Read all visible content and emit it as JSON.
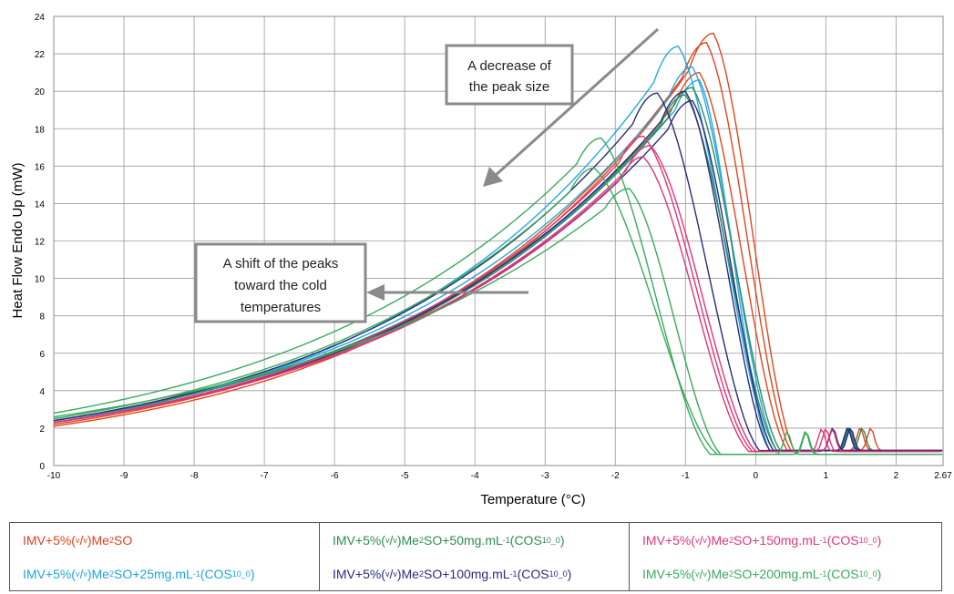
{
  "chart_data": {
    "type": "line",
    "xlabel": "Temperature (°C)",
    "ylabel": "Heat Flow Endo Up (mW)",
    "xlim": [
      -10,
      2.67
    ],
    "ylim": [
      0,
      24
    ],
    "x_ticks": [
      "-10",
      "-9",
      "-8",
      "-7",
      "-6",
      "-5",
      "-4",
      "-3",
      "-2",
      "-1",
      "0",
      "1",
      "2",
      "2.67"
    ],
    "y_ticks": [
      "0",
      "2",
      "4",
      "6",
      "8",
      "10",
      "12",
      "14",
      "16",
      "18",
      "20",
      "22",
      "24"
    ],
    "grid": true,
    "legend_position": "bottom",
    "annotations": [
      {
        "lines": [
          "A decrease of",
          "the peak size"
        ]
      },
      {
        "lines": [
          "A shift of the peaks",
          "toward the cold",
          "temperatures"
        ]
      }
    ],
    "series": [
      {
        "name": "IMV+5%(v/v)Me2SO",
        "color": "#e0461c",
        "curves": [
          {
            "start": 2.1,
            "peak_x": -0.6,
            "peak_y": 23.1,
            "end_x": 0.55,
            "baseline": 0.8
          },
          {
            "start": 2.2,
            "peak_x": -0.7,
            "peak_y": 22.6,
            "end_x": 0.5,
            "baseline": 0.8
          },
          {
            "start": 2.3,
            "peak_x": -0.8,
            "peak_y": 21.0,
            "end_x": 0.45,
            "baseline": 0.8
          }
        ]
      },
      {
        "name": "IMV+5%(v/v)Me2SO+25mg.mL-1(COS10_0)",
        "color": "#26a9e0",
        "curves": [
          {
            "start": 2.3,
            "peak_x": -1.1,
            "peak_y": 22.4,
            "end_x": 0.25,
            "baseline": 0.8
          },
          {
            "start": 2.4,
            "peak_x": -0.9,
            "peak_y": 21.3,
            "end_x": 0.3,
            "baseline": 0.8
          },
          {
            "start": 2.4,
            "peak_x": -0.8,
            "peak_y": 20.6,
            "end_x": 0.2,
            "baseline": 0.8
          }
        ]
      },
      {
        "name": "IMV+5%(v/v)Me2SO+50mg.mL-1(COS10_0)",
        "color": "#2e8b57",
        "curves": [
          {
            "start": 2.3,
            "peak_x": -0.9,
            "peak_y": 20.2,
            "end_x": 0.35,
            "baseline": 0.8
          },
          {
            "start": 2.4,
            "peak_x": -1.0,
            "peak_y": 19.8,
            "end_x": 0.3,
            "baseline": 0.8
          }
        ]
      },
      {
        "name": "IMV+5%(v/v)Me2SO+100mg.mL-1(COS10_0)",
        "color": "#2b2b7a",
        "curves": [
          {
            "start": 2.4,
            "peak_x": -1.4,
            "peak_y": 19.9,
            "end_x": 0.05,
            "baseline": 0.8
          },
          {
            "start": 2.3,
            "peak_x": -1.0,
            "peak_y": 20.0,
            "end_x": 0.2,
            "baseline": 0.8
          },
          {
            "start": 2.3,
            "peak_x": -0.9,
            "peak_y": 19.5,
            "end_x": 0.25,
            "baseline": 0.8
          }
        ]
      },
      {
        "name": "IMV+5%(v/v)Me2SO+150mg.mL-1(COS10_0)",
        "color": "#e0357a",
        "curves": [
          {
            "start": 2.3,
            "peak_x": -1.6,
            "peak_y": 17.6,
            "end_x": -0.05,
            "baseline": 0.75
          },
          {
            "start": 2.3,
            "peak_x": -1.5,
            "peak_y": 17.1,
            "end_x": 0.0,
            "baseline": 0.75
          },
          {
            "start": 2.3,
            "peak_x": -1.6,
            "peak_y": 16.5,
            "end_x": -0.1,
            "baseline": 0.75
          }
        ]
      },
      {
        "name": "IMV+5%(v/v)Me2SO+200mg.mL-1(COS10_0)",
        "color": "#3aaa5c",
        "curves": [
          {
            "start": 2.8,
            "peak_x": -2.2,
            "peak_y": 17.5,
            "end_x": -0.65,
            "baseline": 0.6
          },
          {
            "start": 2.5,
            "peak_x": -2.3,
            "peak_y": 15.9,
            "end_x": -0.55,
            "baseline": 0.6
          },
          {
            "start": 2.6,
            "peak_x": -1.8,
            "peak_y": 14.8,
            "end_x": -0.5,
            "baseline": 0.6
          }
        ]
      }
    ]
  },
  "legend": {
    "items": [
      {
        "prefix": "IMV+5%(",
        "v": "v",
        "mid": "/",
        "vv": "v",
        "rest": ")Me",
        "sub2": "2",
        "tail": "SO",
        "extra": "",
        "sup": "",
        "paren": "",
        "cos": "",
        "cos_sub": "",
        "close": "",
        "color": "#d9441c"
      },
      {
        "prefix": "IMV+5%(",
        "v": "v",
        "mid": "/",
        "vv": "v",
        "rest": ")Me",
        "sub2": "2",
        "tail": "SO+25mg.mL",
        "extra": "",
        "sup": "-1",
        "paren": "(",
        "cos": "COS",
        "cos_sub": "10_0",
        "close": ")",
        "color": "#1ea5dc"
      },
      {
        "prefix": "IMV+5%(",
        "v": "v",
        "mid": "/",
        "vv": "v",
        "rest": ")Me",
        "sub2": "2",
        "tail": "SO+50mg.mL",
        "extra": "",
        "sup": "-1",
        "paren": "(",
        "cos": "COS",
        "cos_sub": "10_0",
        "close": ")",
        "color": "#2e8b57"
      },
      {
        "prefix": "IMV+5%(",
        "v": "v",
        "mid": "/",
        "vv": "v",
        "rest": ")Me",
        "sub2": "2",
        "tail": "SO+100mg.mL",
        "extra": "",
        "sup": "-1",
        "paren": "(",
        "cos": "COS",
        "cos_sub": "10_0",
        "close": ")",
        "color": "#2b2b7a"
      },
      {
        "prefix": "IMV+5%(",
        "v": "v",
        "mid": "/",
        "vv": "v",
        "rest": ")Me",
        "sub2": "2",
        "tail": "SO+150mg.mL",
        "extra": "",
        "sup": "-1",
        "paren": "(",
        "cos": "COS",
        "cos_sub": "10_0",
        "close": ")",
        "color": "#e0357a"
      },
      {
        "prefix": "IMV+5%(",
        "v": "v",
        "mid": "/",
        "vv": "v",
        "rest": ")Me",
        "sub2": "2",
        "tail": "SO+200mg.mL",
        "extra": "",
        "sup": "-1",
        "paren": "(",
        "cos": "COS",
        "cos_sub": "10_0",
        "close": ")",
        "color": "#3aaa5c"
      }
    ]
  }
}
